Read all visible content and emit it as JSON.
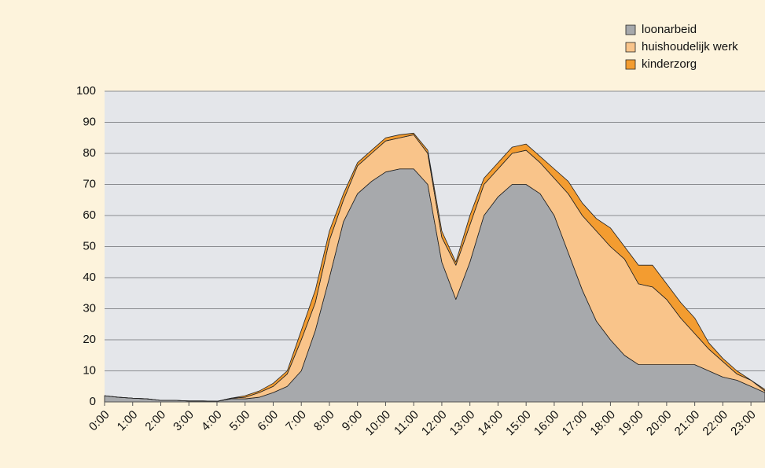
{
  "chart_data": {
    "type": "stacked-area",
    "categories": [
      "0:00",
      null,
      "1:00",
      null,
      "2:00",
      null,
      "3:00",
      null,
      "4:00",
      null,
      "5:00",
      null,
      "6:00",
      null,
      "7:00",
      null,
      "8:00",
      null,
      "9:00",
      null,
      "10:00",
      null,
      "11:00",
      null,
      "12:00",
      null,
      "13:00",
      null,
      "14:00",
      null,
      "15:00",
      null,
      "16:00",
      null,
      "17:00",
      null,
      "18:00",
      null,
      "19:00",
      null,
      "20:00",
      null,
      "21:00",
      null,
      "22:00",
      null,
      "23:00",
      null
    ],
    "series": [
      {
        "name": "loonarbeid",
        "color": "#a7a9ac",
        "values": [
          2,
          1.5,
          1.2,
          1,
          0.5,
          0.5,
          0.3,
          0.3,
          0.2,
          1,
          1,
          1.5,
          3,
          5,
          10,
          23,
          40,
          58,
          67,
          71,
          74,
          75,
          75,
          70,
          45,
          33,
          45,
          60,
          66,
          70,
          70,
          67,
          60,
          48,
          36,
          26,
          20,
          15,
          12,
          12,
          12,
          12,
          12,
          10,
          8,
          7,
          5,
          3
        ]
      },
      {
        "name": "huishoudelijk werk",
        "color": "#f9c48a",
        "values": [
          0,
          0,
          0,
          0,
          0,
          0,
          0,
          0,
          0,
          0.2,
          0.5,
          1.5,
          2,
          4,
          10,
          9,
          12,
          7,
          9,
          9,
          10,
          10,
          11,
          10,
          8,
          11,
          12,
          10,
          9,
          10,
          11,
          10,
          12,
          19,
          24,
          29,
          30,
          31,
          26,
          25,
          21,
          15,
          10,
          7,
          5,
          2,
          2,
          0.5
        ]
      },
      {
        "name": "kinderzorg",
        "color": "#f39c30",
        "values": [
          0,
          0,
          0,
          0,
          0,
          0,
          0,
          0,
          0,
          0,
          0.5,
          0.5,
          1,
          1,
          3,
          4,
          3,
          2,
          1,
          1,
          1,
          1,
          0.5,
          1,
          2,
          1,
          3,
          2,
          2,
          2,
          2,
          2,
          3,
          4,
          4,
          4,
          6,
          4,
          6,
          7,
          5,
          5,
          5,
          2,
          1,
          1,
          0,
          0.5
        ]
      }
    ],
    "ylim": [
      0,
      100
    ],
    "yticks": [
      0,
      10,
      20,
      30,
      40,
      50,
      60,
      70,
      80,
      90,
      100
    ],
    "grid": true,
    "legend": "top-right"
  }
}
